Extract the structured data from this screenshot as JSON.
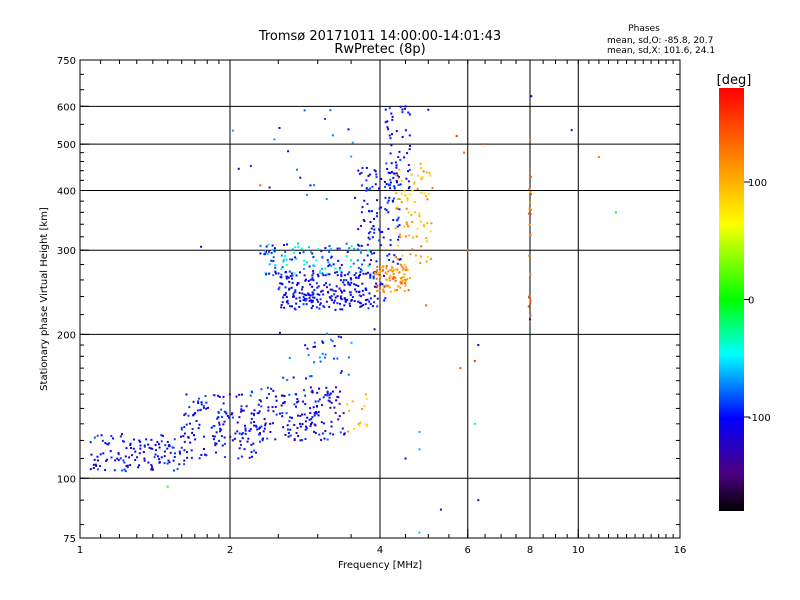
{
  "chart_data": {
    "type": "scatter",
    "title": "Tromsø 20171011 14:00:00-14:01:43",
    "subtitle": "RwPretec (8p)",
    "xlabel": "Frequency [MHz]",
    "ylabel": "Stationary phase Virtual Height [km]",
    "x_scale": "log",
    "y_scale": "log",
    "xlim": [
      1,
      16
    ],
    "ylim": [
      75,
      750
    ],
    "x_ticks": [
      "1",
      "2",
      "4",
      "6",
      "8",
      "10",
      "16"
    ],
    "x_tick_values": [
      1,
      2,
      4,
      6,
      8,
      10,
      16
    ],
    "y_ticks": [
      "75",
      "100",
      "200",
      "300",
      "400",
      "500",
      "600",
      "750"
    ],
    "y_tick_values": [
      75,
      100,
      200,
      300,
      400,
      500,
      600,
      750
    ],
    "grid": true,
    "phase_stats": {
      "heading": "Phases",
      "line1": "mean, sd,O: -85.8, 20.7",
      "line2": "mean, sd,X: 101.6, 24.1"
    },
    "colorbar": {
      "label": "[deg]",
      "ticks": [
        "100",
        "0",
        "-100"
      ],
      "tick_values": [
        100,
        0,
        -100
      ],
      "range": [
        -180,
        180
      ]
    },
    "clusters": [
      {
        "xmin": 1.05,
        "xmax": 1.65,
        "ymin": 103,
        "ymax": 124,
        "n": 130,
        "pmin": -130,
        "pmax": -80,
        "note": "E/F1 low trace"
      },
      {
        "xmin": 1.6,
        "xmax": 2.3,
        "ymin": 110,
        "ymax": 150,
        "n": 150,
        "pmin": -130,
        "pmax": -80
      },
      {
        "xmin": 2.2,
        "xmax": 3.4,
        "ymin": 120,
        "ymax": 155,
        "n": 170,
        "pmin": -140,
        "pmax": -80
      },
      {
        "xmin": 2.4,
        "xmax": 3.6,
        "ymin": 160,
        "ymax": 205,
        "n": 35,
        "pmin": -120,
        "pmax": -60
      },
      {
        "xmin": 3.4,
        "xmax": 3.8,
        "ymin": 125,
        "ymax": 150,
        "n": 14,
        "pmin": 70,
        "pmax": 120
      },
      {
        "xmin": 2.5,
        "xmax": 4.1,
        "ymin": 225,
        "ymax": 270,
        "n": 260,
        "pmin": -125,
        "pmax": -85
      },
      {
        "xmin": 2.3,
        "xmax": 3.8,
        "ymin": 265,
        "ymax": 310,
        "n": 120,
        "pmin": -120,
        "pmax": -30
      },
      {
        "xmin": 3.6,
        "xmax": 4.4,
        "ymin": 280,
        "ymax": 450,
        "n": 110,
        "pmin": -120,
        "pmax": -80
      },
      {
        "xmin": 4.1,
        "xmax": 4.6,
        "ymin": 400,
        "ymax": 600,
        "n": 60,
        "pmin": -120,
        "pmax": -80
      },
      {
        "xmin": 3.9,
        "xmax": 4.6,
        "ymin": 245,
        "ymax": 280,
        "n": 90,
        "pmin": 90,
        "pmax": 140,
        "note": "X trace"
      },
      {
        "xmin": 4.3,
        "xmax": 5.1,
        "ymin": 280,
        "ymax": 460,
        "n": 80,
        "pmin": 70,
        "pmax": 130
      },
      {
        "xmin": 2.0,
        "xmax": 3.8,
        "ymin": 380,
        "ymax": 590,
        "n": 20,
        "pmin": -120,
        "pmax": -60
      },
      {
        "xmin": 7.95,
        "xmax": 8.05,
        "ymin": 200,
        "ymax": 520,
        "n": 22,
        "pmin": 110,
        "pmax": 160,
        "note": "interference column"
      }
    ],
    "points": [
      {
        "x": 1.02,
        "y": 100,
        "phase": -20
      },
      {
        "x": 1.5,
        "y": 96,
        "phase": 10
      },
      {
        "x": 1.75,
        "y": 305,
        "phase": -100
      },
      {
        "x": 2.3,
        "y": 410,
        "phase": 140
      },
      {
        "x": 2.9,
        "y": 410,
        "phase": -100
      },
      {
        "x": 5.0,
        "y": 590,
        "phase": -100
      },
      {
        "x": 4.5,
        "y": 600,
        "phase": -100
      },
      {
        "x": 5.7,
        "y": 520,
        "phase": 160
      },
      {
        "x": 5.9,
        "y": 480,
        "phase": 140
      },
      {
        "x": 6.0,
        "y": 300,
        "phase": 140
      },
      {
        "x": 6.3,
        "y": 90,
        "phase": -130
      },
      {
        "x": 6.3,
        "y": 190,
        "phase": -110
      },
      {
        "x": 6.2,
        "y": 176,
        "phase": 160
      },
      {
        "x": 6.2,
        "y": 130,
        "phase": -20
      },
      {
        "x": 5.3,
        "y": 86,
        "phase": -120
      },
      {
        "x": 4.8,
        "y": 125,
        "phase": -60
      },
      {
        "x": 4.8,
        "y": 115,
        "phase": -60
      },
      {
        "x": 4.8,
        "y": 77,
        "phase": -60
      },
      {
        "x": 4.5,
        "y": 110,
        "phase": -100
      },
      {
        "x": 6.5,
        "y": 500,
        "phase": 140
      },
      {
        "x": 8.05,
        "y": 630,
        "phase": -100
      },
      {
        "x": 8.0,
        "y": 215,
        "phase": -100
      },
      {
        "x": 9.7,
        "y": 535,
        "phase": -150
      },
      {
        "x": 11.0,
        "y": 470,
        "phase": 120
      },
      {
        "x": 11.9,
        "y": 360,
        "phase": -10
      },
      {
        "x": 3.9,
        "y": 205,
        "phase": -100
      },
      {
        "x": 4.95,
        "y": 230,
        "phase": 140
      },
      {
        "x": 5.8,
        "y": 170,
        "phase": 150
      }
    ]
  }
}
